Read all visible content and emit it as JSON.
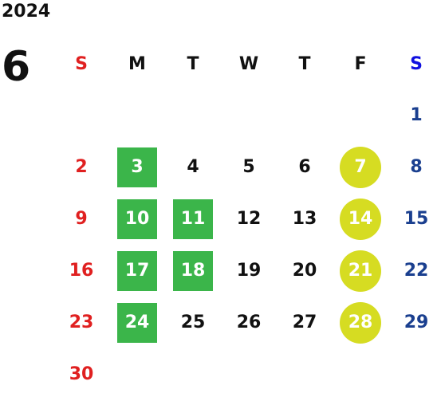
{
  "calendar": {
    "year": "2024",
    "month": "6",
    "weekdays": [
      "S",
      "M",
      "T",
      "W",
      "T",
      "F",
      "S"
    ],
    "weeks": [
      [
        "",
        "",
        "",
        "",
        "",
        "",
        "1"
      ],
      [
        "2",
        "3",
        "4",
        "5",
        "6",
        "7",
        "8"
      ],
      [
        "9",
        "10",
        "11",
        "12",
        "13",
        "14",
        "15"
      ],
      [
        "16",
        "17",
        "18",
        "19",
        "20",
        "21",
        "22"
      ],
      [
        "23",
        "24",
        "25",
        "26",
        "27",
        "28",
        "29"
      ],
      [
        "30",
        "",
        "",
        "",
        "",
        "",
        ""
      ]
    ],
    "highlight_green_days": [
      "3",
      "10",
      "11",
      "17",
      "18",
      "24"
    ],
    "highlight_yellow_days": [
      "7",
      "14",
      "21",
      "28"
    ],
    "colors": {
      "sunday": "#e02020",
      "saturday_header": "#1010e0",
      "saturday_date": "#1a3f8f",
      "green_highlight": "#3bb54a",
      "yellow_highlight": "#d6dc22",
      "text": "#111111"
    }
  }
}
